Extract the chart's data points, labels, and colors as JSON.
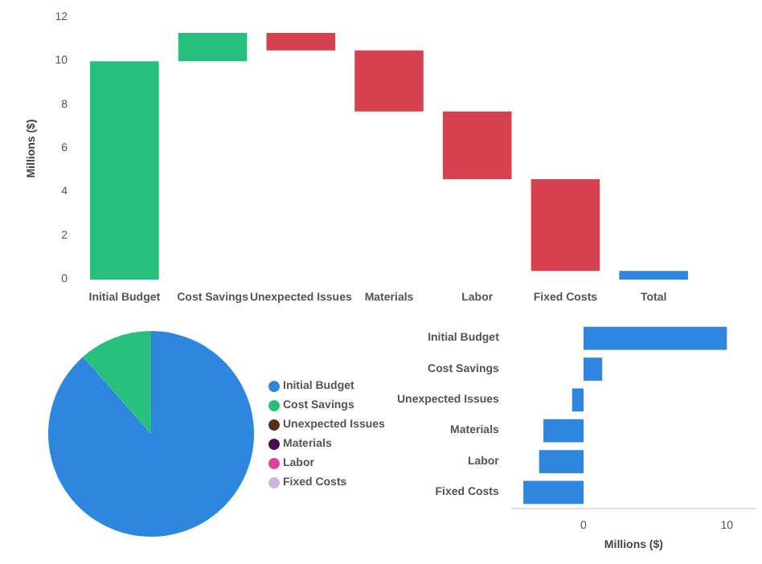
{
  "chart_data": [
    {
      "type": "bar",
      "categories": [
        "Initial Budget",
        "Cost Savings",
        "Unexpected Issues",
        "Materials",
        "Labor",
        "Fixed Costs",
        "Total"
      ],
      "base": [
        0,
        10,
        11.3,
        10.5,
        7.7,
        4.6,
        0
      ],
      "values": [
        10,
        1.3,
        -0.8,
        -2.8,
        -3.1,
        -4.2,
        0.4
      ],
      "colors": [
        "#26c07c",
        "#26c07c",
        "#d7414f",
        "#d7414f",
        "#d7414f",
        "#d7414f",
        "#2e86de"
      ],
      "ylabel": "Millions ($)",
      "ylim": [
        0,
        12
      ],
      "yticks": [
        0,
        2,
        4,
        6,
        8,
        10,
        12
      ],
      "grid": false,
      "legend": false
    },
    {
      "type": "pie",
      "categories": [
        "Initial Budget",
        "Cost Savings",
        "Unexpected Issues",
        "Materials",
        "Labor",
        "Fixed Costs"
      ],
      "values": [
        88.5,
        11.5,
        0,
        0,
        0,
        0
      ],
      "colors": [
        "#2e86de",
        "#26c07c",
        "#5a2a1c",
        "#4a0c4a",
        "#e0409a",
        "#c9b6e0"
      ],
      "legend": "right"
    },
    {
      "type": "bar",
      "orientation": "horizontal",
      "categories": [
        "Initial Budget",
        "Cost Savings",
        "Unexpected Issues",
        "Materials",
        "Labor",
        "Fixed Costs"
      ],
      "values": [
        10,
        1.3,
        -0.8,
        -2.8,
        -3.1,
        -4.2
      ],
      "color": "#2e86de",
      "xlabel": "Millions ($)",
      "xlim": [
        -5,
        12
      ],
      "xticks": [
        0,
        10
      ],
      "grid": false,
      "legend": false
    }
  ]
}
